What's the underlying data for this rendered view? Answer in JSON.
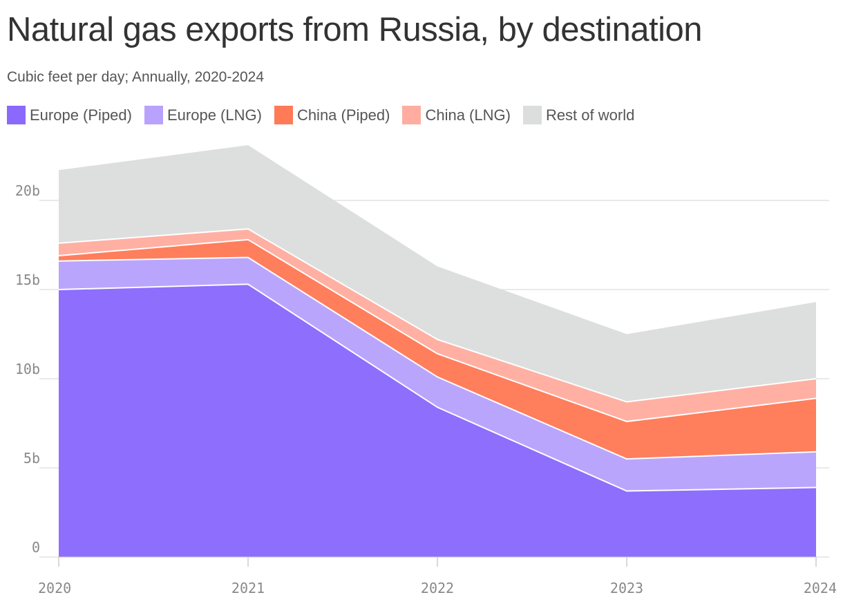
{
  "title": "Natural gas exports from Russia, by destination",
  "subtitle": "Cubic feet per day; Annually, 2020-2024",
  "legend": [
    {
      "label": "Europe (Piped)",
      "color": "#8a69fc"
    },
    {
      "label": "Europe (LNG)",
      "color": "#b8a2fd"
    },
    {
      "label": "China (Piped)",
      "color": "#ff7a57"
    },
    {
      "label": "China (LNG)",
      "color": "#ffada0"
    },
    {
      "label": "Rest of world",
      "color": "#dcdedd"
    }
  ],
  "chart_data": {
    "type": "area",
    "stacked": true,
    "x": [
      "2020",
      "2021",
      "2022",
      "2023",
      "2024"
    ],
    "series": [
      {
        "name": "Europe (Piped)",
        "values": [
          15.0,
          15.3,
          8.4,
          3.7,
          3.9
        ],
        "color": "#8a69fc"
      },
      {
        "name": "Europe (LNG)",
        "values": [
          1.6,
          1.5,
          1.7,
          1.8,
          2.0
        ],
        "color": "#b8a2fd"
      },
      {
        "name": "China (Piped)",
        "values": [
          0.3,
          1.0,
          1.3,
          2.1,
          3.0
        ],
        "color": "#ff7a57"
      },
      {
        "name": "China (LNG)",
        "values": [
          0.7,
          0.6,
          0.8,
          1.1,
          1.1
        ],
        "color": "#ffada0"
      },
      {
        "name": "Rest of world",
        "values": [
          4.1,
          4.7,
          4.1,
          3.8,
          4.3
        ],
        "color": "#dcdedd"
      }
    ],
    "y_ticks": [
      {
        "value": 0,
        "label": "0"
      },
      {
        "value": 5,
        "label": "5b"
      },
      {
        "value": 10,
        "label": "10b"
      },
      {
        "value": 15,
        "label": "15b"
      },
      {
        "value": 20,
        "label": "20b"
      }
    ],
    "ylim": [
      0,
      23.5
    ],
    "grid": true
  }
}
